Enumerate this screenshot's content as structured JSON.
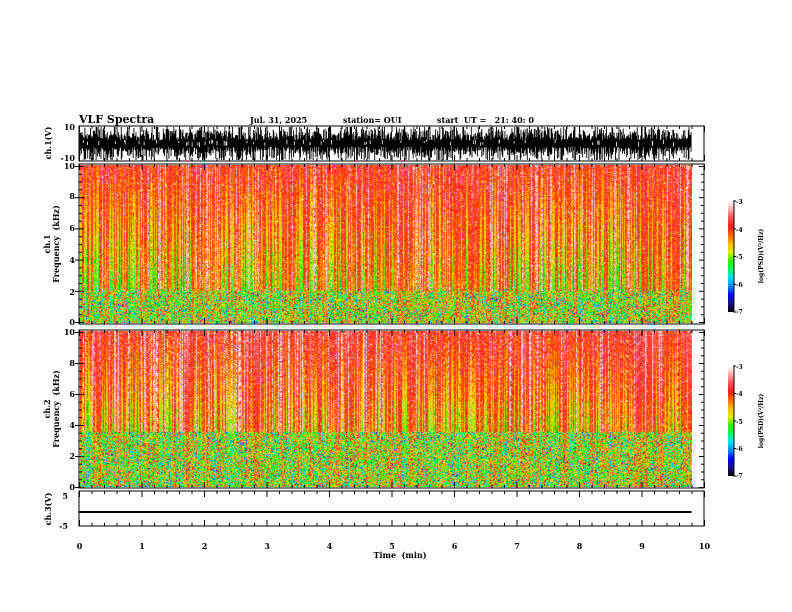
{
  "chart_data": {
    "type": "heatmap",
    "title": "VLF Spectra",
    "date": "Jul. 31, 2025",
    "station": "station= OUI",
    "start_ut": "start  UT =   21: 40: 0",
    "xlabel": "Time  (min)",
    "xlim": [
      0,
      10
    ],
    "x_data_end": 9.8,
    "xticks": [
      "0",
      "1",
      "2",
      "3",
      "4",
      "5",
      "6",
      "7",
      "8",
      "9",
      "10"
    ],
    "panels": [
      {
        "id": "ch1-waveform",
        "type": "line",
        "ylabel": "ch.1(V)",
        "ylim": [
          -10,
          10
        ],
        "yticks": [
          "10",
          "-10"
        ]
      },
      {
        "id": "ch1-spectrogram",
        "type": "heatmap",
        "ylabel_line1": "ch.1",
        "ylabel_line2": "Frequency  (kHz)",
        "ylim": [
          0,
          10
        ],
        "yticks": [
          "0",
          "2",
          "4",
          "6",
          "8",
          "10"
        ],
        "colorbar": {
          "label": "log(PSD)(V²/Hz)",
          "range": [
            -7,
            -3
          ],
          "ticks": [
            "-3",
            "-4",
            "-5",
            "-6",
            "-7"
          ]
        },
        "low_band_max_khz": 2
      },
      {
        "id": "ch2-spectrogram",
        "type": "heatmap",
        "ylabel_line1": "ch.2",
        "ylabel_line2": "Frequency  (kHz)",
        "ylim": [
          0,
          10
        ],
        "yticks": [
          "0",
          "2",
          "4",
          "6",
          "8",
          "10"
        ],
        "colorbar": {
          "label": "log(PSD)(V²/Hz)",
          "range": [
            -7,
            -3
          ],
          "ticks": [
            "-3",
            "-4",
            "-5",
            "-6",
            "-7"
          ]
        },
        "low_band_max_khz": 3.5
      },
      {
        "id": "ch3-waveform",
        "type": "line",
        "ylabel": "ch.3(V)",
        "ylim": [
          -5,
          5
        ],
        "yticks": [
          "5",
          "-5"
        ],
        "constant_value": -1.0
      }
    ],
    "colormap": [
      "#000000",
      "#1a0d8c",
      "#0000ff",
      "#0088ff",
      "#00e0ff",
      "#00ff60",
      "#33ee00",
      "#ddee00",
      "#ffbb00",
      "#ff6600",
      "#ff1a1a",
      "#ff5050",
      "#ffaaaa",
      "#ffffff"
    ]
  }
}
